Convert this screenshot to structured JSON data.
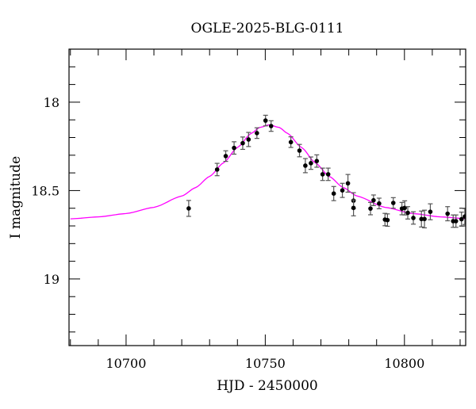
{
  "chart_data": {
    "type": "scatter",
    "title": "OGLE-2025-BLG-0111",
    "xlabel": "HJD - 2450000",
    "ylabel": "I magnitude",
    "xlim": [
      10679.5,
      10822
    ],
    "ylim": [
      19.377,
      17.7
    ],
    "y_inverted": true,
    "grid": false,
    "x_ticks": [
      10700,
      10750,
      10800
    ],
    "y_ticks": [
      18,
      18.5,
      19
    ],
    "x_tick_labels": [
      "10700",
      "10750",
      "10800"
    ],
    "y_tick_labels": [
      "18",
      "18.5",
      "19"
    ],
    "colors": {
      "data": "#000000",
      "errorbar": "#555555",
      "model": "#ff00ff"
    },
    "series": [
      {
        "kind": "points_with_errors",
        "x": [
          10722.5,
          10732.7,
          10735.8,
          10738.8,
          10741.9,
          10744.0,
          10747.0,
          10750.1,
          10752.1,
          10759.2,
          10762.3,
          10764.4,
          10766.4,
          10768.5,
          10770.6,
          10772.6,
          10774.6,
          10777.7,
          10779.7,
          10781.7,
          10781.7,
          10787.8,
          10788.9,
          10790.9,
          10793.0,
          10793.9,
          10796.0,
          10799.1,
          10800.1,
          10801.2,
          10803.2,
          10806.1,
          10807.2,
          10809.3,
          10815.5,
          10817.5,
          10818.5,
          10820.5,
          10821.7
        ],
        "y": [
          18.601,
          18.381,
          18.305,
          18.259,
          18.232,
          18.211,
          18.175,
          18.104,
          18.135,
          18.226,
          18.274,
          18.359,
          18.345,
          18.333,
          18.408,
          18.408,
          18.517,
          18.499,
          18.459,
          18.557,
          18.598,
          18.602,
          18.555,
          18.573,
          18.664,
          18.667,
          18.57,
          18.602,
          18.598,
          18.626,
          18.655,
          18.661,
          18.661,
          18.62,
          18.631,
          18.673,
          18.673,
          18.662,
          18.647
        ],
        "yerr": [
          0.045,
          0.035,
          0.03,
          0.035,
          0.035,
          0.04,
          0.03,
          0.03,
          0.03,
          0.03,
          0.035,
          0.04,
          0.035,
          0.035,
          0.035,
          0.035,
          0.04,
          0.04,
          0.05,
          0.045,
          0.045,
          0.035,
          0.03,
          0.03,
          0.035,
          0.035,
          0.03,
          0.035,
          0.04,
          0.035,
          0.035,
          0.045,
          0.05,
          0.045,
          0.04,
          0.035,
          0.035,
          0.04,
          0.045
        ]
      },
      {
        "kind": "model_curve",
        "x": [
          10680,
          10690,
          10700,
          10710,
          10720,
          10725,
          10730,
          10735,
          10740,
          10745,
          10748,
          10751.5,
          10755,
          10758,
          10763,
          10768,
          10773,
          10778,
          10783,
          10793,
          10803,
          10813,
          10823
        ],
        "y": [
          18.66,
          18.649,
          18.63,
          18.595,
          18.531,
          18.483,
          18.42,
          18.343,
          18.256,
          18.176,
          18.143,
          18.128,
          18.143,
          18.176,
          18.256,
          18.343,
          18.42,
          18.483,
          18.531,
          18.595,
          18.63,
          18.649,
          18.66
        ]
      }
    ]
  }
}
